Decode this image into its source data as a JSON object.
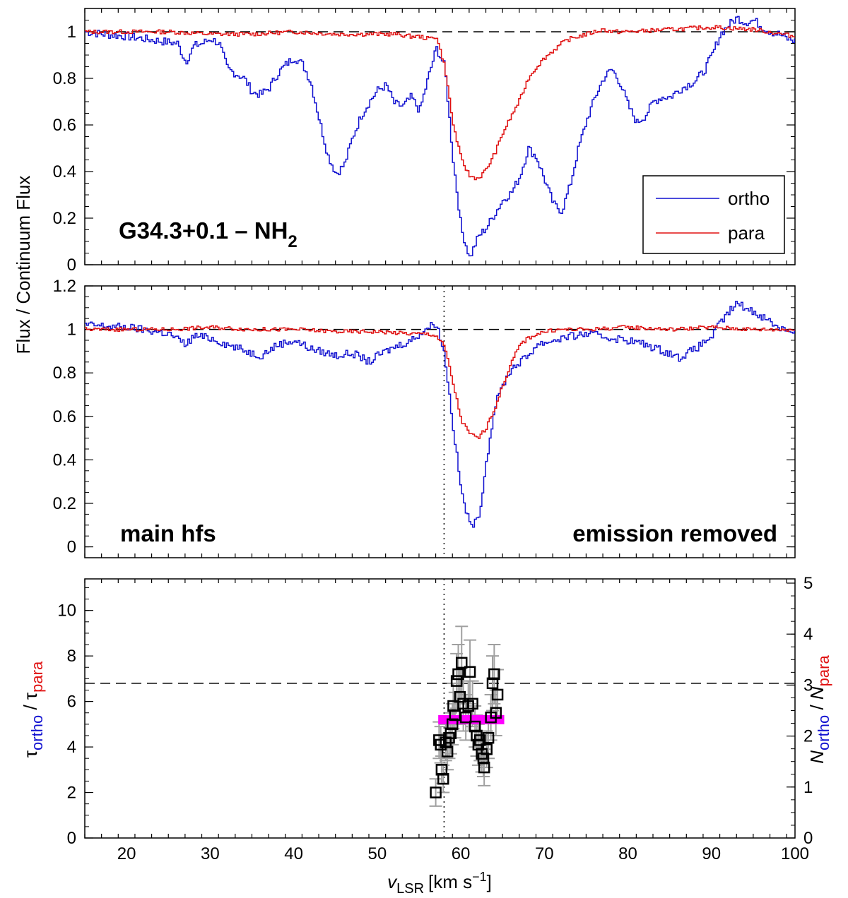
{
  "chart_data": {
    "type": "line",
    "colors": {
      "ortho": "#1010d0",
      "para": "#e01010",
      "fit": "#ff00ff",
      "errorbar": "#a0a0a0",
      "axes": "#000000"
    },
    "shared_x": {
      "label_v": "v",
      "label_sub": "LSR",
      "label_unit": "[km s",
      "label_sup": "−1",
      "label_close": "]",
      "xlim": [
        15,
        100
      ],
      "ticks": [
        20,
        30,
        40,
        50,
        60,
        70,
        80,
        90,
        100
      ]
    },
    "shared_ylabel": "Flux / Continuum Flux",
    "panels": [
      {
        "id": "top",
        "ylim": [
          0,
          1.1
        ],
        "yticks": [
          "0",
          "0.2",
          "0.4",
          "0.6",
          "0.8",
          "1"
        ],
        "ytick_values": [
          0,
          0.2,
          0.4,
          0.6,
          0.8,
          1
        ],
        "hline": 1,
        "annotation": "G34.3+0.1  –  NH",
        "annotation_sub": "2",
        "legend": {
          "placement": "bottom-right",
          "entries": [
            "ortho",
            "para"
          ]
        },
        "series": [
          {
            "name": "ortho",
            "color": "#1010d0",
            "x": [
              15,
              17,
              20,
              22,
              24,
              26,
              27,
              28,
              29,
              30,
              31,
              32,
              33,
              34,
              35,
              36,
              37,
              38,
              39,
              40,
              41,
              42,
              43,
              44,
              45,
              46,
              47,
              48,
              49,
              50,
              51,
              52,
              53,
              54,
              55,
              56,
              57,
              58,
              59,
              60,
              61,
              62,
              63,
              64,
              65,
              66,
              67,
              68,
              69,
              70,
              71,
              72,
              73,
              74,
              75,
              76,
              77,
              78,
              79,
              80,
              81,
              82,
              83,
              84,
              85,
              86,
              87,
              88,
              89,
              90,
              91,
              92,
              93,
              94,
              95,
              96,
              97,
              98,
              99,
              100
            ],
            "y": [
              1.0,
              0.99,
              0.98,
              0.97,
              0.96,
              0.95,
              0.87,
              0.94,
              0.95,
              0.97,
              0.95,
              0.84,
              0.82,
              0.8,
              0.74,
              0.73,
              0.76,
              0.82,
              0.86,
              0.89,
              0.86,
              0.78,
              0.62,
              0.47,
              0.39,
              0.43,
              0.55,
              0.64,
              0.7,
              0.75,
              0.77,
              0.69,
              0.68,
              0.72,
              0.66,
              0.8,
              0.93,
              0.85,
              0.45,
              0.15,
              0.03,
              0.12,
              0.16,
              0.22,
              0.28,
              0.31,
              0.38,
              0.5,
              0.46,
              0.36,
              0.26,
              0.23,
              0.34,
              0.5,
              0.62,
              0.72,
              0.8,
              0.84,
              0.78,
              0.68,
              0.61,
              0.64,
              0.7,
              0.72,
              0.72,
              0.75,
              0.77,
              0.79,
              0.83,
              0.9,
              0.99,
              1.03,
              1.06,
              1.04,
              1.05,
              1.02,
              1.0,
              0.99,
              0.97,
              0.96
            ]
          },
          {
            "name": "para",
            "color": "#e01010",
            "x": [
              15,
              20,
              25,
              30,
              35,
              40,
              45,
              50,
              52,
              54,
              55,
              56,
              57,
              58,
              59,
              60,
              61,
              62,
              63,
              64,
              65,
              66,
              67,
              68,
              69,
              70,
              71,
              72,
              73,
              74,
              75,
              76,
              77,
              78,
              80,
              85,
              90,
              95,
              100
            ],
            "y": [
              1.0,
              1.0,
              1.0,
              0.99,
              0.99,
              1.0,
              0.99,
              0.99,
              0.99,
              0.98,
              0.98,
              0.97,
              0.98,
              0.85,
              0.6,
              0.45,
              0.38,
              0.37,
              0.41,
              0.48,
              0.57,
              0.64,
              0.71,
              0.8,
              0.85,
              0.89,
              0.92,
              0.95,
              0.97,
              0.98,
              0.99,
              1.0,
              1.01,
              1.0,
              1.0,
              1.01,
              1.02,
              1.01,
              0.98
            ]
          }
        ]
      },
      {
        "id": "middle",
        "ylim": [
          -0.05,
          1.2
        ],
        "yticks": [
          "0",
          "0.2",
          "0.4",
          "0.6",
          "0.8",
          "1",
          "1.2"
        ],
        "ytick_values": [
          0,
          0.2,
          0.4,
          0.6,
          0.8,
          1,
          1.2
        ],
        "hline": 1,
        "vline": 58,
        "annotation_left": "main hfs",
        "annotation_right": "emission removed",
        "series": [
          {
            "name": "ortho",
            "color": "#1010d0",
            "x": [
              15,
              20,
              25,
              27,
              28,
              30,
              32,
              35,
              36,
              38,
              40,
              42,
              45,
              47,
              49,
              50,
              52,
              54,
              55,
              56,
              57,
              58,
              59,
              60,
              61,
              62,
              63,
              64,
              65,
              66,
              67,
              68,
              69,
              70,
              72,
              75,
              78,
              80,
              82,
              85,
              86,
              88,
              90,
              91,
              92,
              93,
              94,
              95,
              96,
              98,
              100
            ],
            "y": [
              1.02,
              1.01,
              0.98,
              0.93,
              0.97,
              0.96,
              0.93,
              0.89,
              0.88,
              0.93,
              0.95,
              0.91,
              0.88,
              0.89,
              0.85,
              0.88,
              0.92,
              0.95,
              0.98,
              1.01,
              1.03,
              0.88,
              0.55,
              0.25,
              0.1,
              0.12,
              0.4,
              0.65,
              0.75,
              0.82,
              0.85,
              0.88,
              0.93,
              0.94,
              0.96,
              0.98,
              0.96,
              0.95,
              0.93,
              0.89,
              0.87,
              0.91,
              0.97,
              1.03,
              1.08,
              1.12,
              1.1,
              1.08,
              1.06,
              1.01,
              0.99
            ]
          },
          {
            "name": "para",
            "color": "#e01010",
            "x": [
              15,
              20,
              25,
              30,
              35,
              40,
              45,
              50,
              54,
              56,
              57,
              58,
              59,
              60,
              61,
              62,
              63,
              64,
              65,
              66,
              67,
              68,
              69,
              70,
              72,
              75,
              80,
              85,
              90,
              95,
              100
            ],
            "y": [
              1.0,
              1.0,
              1.0,
              1.01,
              1.0,
              1.0,
              0.99,
              0.99,
              0.98,
              0.98,
              0.97,
              0.92,
              0.75,
              0.58,
              0.52,
              0.5,
              0.55,
              0.64,
              0.75,
              0.85,
              0.93,
              0.96,
              0.98,
              0.99,
              1.0,
              1.0,
              1.01,
              1.0,
              1.01,
              1.0,
              1.0
            ]
          }
        ]
      },
      {
        "id": "bottom",
        "type": "scatter",
        "ylim": [
          0,
          11.2
        ],
        "yticks": [
          "0",
          "2",
          "4",
          "6",
          "8",
          "10"
        ],
        "ytick_values": [
          0,
          2,
          4,
          6,
          8,
          10
        ],
        "right_ylim": [
          0,
          5
        ],
        "right_yticks": [
          "0",
          "1",
          "2",
          "3",
          "4",
          "5"
        ],
        "right_ytick_values": [
          0,
          1,
          2,
          3,
          4,
          5
        ],
        "hline": 6.8,
        "vline": 58,
        "ylabel_left": {
          "tau": "τ",
          "ortho": "ortho",
          "slash": " / ",
          "para": "para"
        },
        "ylabel_right": {
          "N": "N",
          "ortho": "ortho",
          "slash": " / ",
          "para": "para"
        },
        "fit_band": {
          "x": [
            57.3,
            65.2
          ],
          "y": 5.2
        },
        "points": [
          {
            "x": 57.0,
            "y": 2.0,
            "err": 0.6
          },
          {
            "x": 57.4,
            "y": 4.3,
            "err": 0.8
          },
          {
            "x": 57.6,
            "y": 4.1,
            "err": 0.8
          },
          {
            "x": 57.7,
            "y": 3.0,
            "err": 0.6
          },
          {
            "x": 57.9,
            "y": 2.6,
            "err": 0.6
          },
          {
            "x": 58.2,
            "y": 4.2,
            "err": 0.8
          },
          {
            "x": 58.4,
            "y": 3.8,
            "err": 0.8
          },
          {
            "x": 58.6,
            "y": 4.4,
            "err": 0.9
          },
          {
            "x": 58.8,
            "y": 4.6,
            "err": 0.9
          },
          {
            "x": 59.0,
            "y": 5.0,
            "err": 0.9
          },
          {
            "x": 59.1,
            "y": 5.8,
            "err": 1.0
          },
          {
            "x": 59.3,
            "y": 5.4,
            "err": 1.0
          },
          {
            "x": 59.5,
            "y": 6.9,
            "err": 1.2
          },
          {
            "x": 59.7,
            "y": 7.2,
            "err": 1.3
          },
          {
            "x": 59.9,
            "y": 6.2,
            "err": 1.2
          },
          {
            "x": 60.1,
            "y": 7.7,
            "err": 1.6
          },
          {
            "x": 60.3,
            "y": 5.9,
            "err": 1.2
          },
          {
            "x": 60.6,
            "y": 5.3,
            "err": 1.0
          },
          {
            "x": 60.9,
            "y": 5.8,
            "err": 1.1
          },
          {
            "x": 61.1,
            "y": 7.3,
            "err": 1.4
          },
          {
            "x": 61.4,
            "y": 5.9,
            "err": 1.0
          },
          {
            "x": 61.7,
            "y": 4.9,
            "err": 0.9
          },
          {
            "x": 61.9,
            "y": 4.5,
            "err": 0.9
          },
          {
            "x": 62.1,
            "y": 4.1,
            "err": 0.9
          },
          {
            "x": 62.3,
            "y": 4.3,
            "err": 0.9
          },
          {
            "x": 62.5,
            "y": 3.7,
            "err": 0.8
          },
          {
            "x": 62.7,
            "y": 3.5,
            "err": 0.8
          },
          {
            "x": 62.8,
            "y": 3.1,
            "err": 0.8
          },
          {
            "x": 63.1,
            "y": 3.9,
            "err": 0.8
          },
          {
            "x": 63.3,
            "y": 4.4,
            "err": 0.9
          },
          {
            "x": 63.6,
            "y": 5.3,
            "err": 1.0
          },
          {
            "x": 63.8,
            "y": 6.8,
            "err": 1.2
          },
          {
            "x": 64.0,
            "y": 7.2,
            "err": 1.3
          },
          {
            "x": 64.2,
            "y": 5.5,
            "err": 1.0
          },
          {
            "x": 64.4,
            "y": 6.3,
            "err": 1.1
          }
        ]
      }
    ]
  }
}
